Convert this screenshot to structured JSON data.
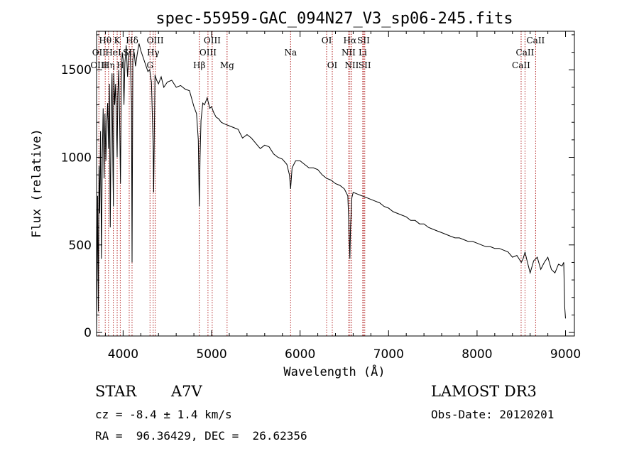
{
  "chart_data": {
    "type": "line",
    "title": "spec-55959-GAC_094N27_V3_sp06-245.fits",
    "xlabel": "Wavelength (Å)",
    "ylabel": "Flux (relative)",
    "xlim": [
      3700,
      9100
    ],
    "ylim": [
      -20,
      1720
    ],
    "xticks": [
      4000,
      5000,
      6000,
      7000,
      8000,
      9000
    ],
    "yticks": [
      0,
      500,
      1000,
      1500
    ],
    "series": [
      {
        "name": "spectrum",
        "x": [
          3700,
          3705,
          3712,
          3720,
          3728,
          3735,
          3745,
          3755,
          3765,
          3775,
          3785,
          3795,
          3805,
          3815,
          3825,
          3835,
          3845,
          3855,
          3865,
          3875,
          3885,
          3890,
          3895,
          3905,
          3915,
          3925,
          3933,
          3940,
          3950,
          3960,
          3970,
          3980,
          3990,
          4000,
          4010,
          4020,
          4035,
          4050,
          4065,
          4080,
          4095,
          4101,
          4110,
          4125,
          4140,
          4160,
          4180,
          4200,
          4220,
          4240,
          4260,
          4280,
          4300,
          4320,
          4340,
          4345,
          4360,
          4380,
          4400,
          4430,
          4460,
          4500,
          4550,
          4600,
          4650,
          4700,
          4750,
          4800,
          4830,
          4850,
          4861,
          4870,
          4880,
          4900,
          4920,
          4950,
          4980,
          5000,
          5020,
          5050,
          5080,
          5110,
          5150,
          5200,
          5250,
          5300,
          5350,
          5400,
          5450,
          5500,
          5550,
          5600,
          5650,
          5700,
          5750,
          5800,
          5850,
          5880,
          5893,
          5910,
          5950,
          6000,
          6050,
          6100,
          6150,
          6200,
          6250,
          6300,
          6350,
          6400,
          6450,
          6500,
          6540,
          6555,
          6563,
          6570,
          6585,
          6600,
          6650,
          6700,
          6750,
          6800,
          6850,
          6900,
          6950,
          7000,
          7050,
          7100,
          7150,
          7200,
          7250,
          7300,
          7350,
          7400,
          7450,
          7500,
          7550,
          7600,
          7650,
          7700,
          7750,
          7800,
          7850,
          7900,
          7950,
          8000,
          8050,
          8100,
          8150,
          8200,
          8250,
          8300,
          8350,
          8400,
          8450,
          8500,
          8520,
          8542,
          8560,
          8600,
          8640,
          8662,
          8680,
          8720,
          8760,
          8800,
          8840,
          8880,
          8920,
          8960,
          8980,
          8990,
          9000
        ],
        "values": [
          20,
          310,
          780,
          120,
          950,
          680,
          1150,
          420,
          1020,
          1280,
          880,
          1250,
          980,
          1190,
          1310,
          1050,
          1420,
          600,
          1260,
          1480,
          920,
          720,
          1480,
          1300,
          1420,
          1210,
          1000,
          1350,
          1500,
          1240,
          850,
          1450,
          1600,
          1560,
          1300,
          1540,
          1640,
          1460,
          1590,
          1610,
          1300,
          400,
          1560,
          1600,
          1520,
          1590,
          1650,
          1610,
          1580,
          1550,
          1520,
          1490,
          1500,
          1430,
          1050,
          800,
          1470,
          1440,
          1420,
          1460,
          1400,
          1430,
          1440,
          1400,
          1410,
          1390,
          1380,
          1290,
          1250,
          1100,
          720,
          1000,
          1210,
          1310,
          1300,
          1340,
          1280,
          1290,
          1260,
          1230,
          1220,
          1200,
          1190,
          1180,
          1170,
          1160,
          1110,
          1130,
          1110,
          1080,
          1050,
          1070,
          1060,
          1020,
          1000,
          990,
          960,
          900,
          820,
          940,
          980,
          980,
          960,
          940,
          940,
          930,
          900,
          880,
          870,
          850,
          840,
          820,
          780,
          560,
          420,
          600,
          770,
          800,
          790,
          780,
          770,
          760,
          750,
          740,
          720,
          710,
          690,
          680,
          670,
          660,
          640,
          640,
          620,
          620,
          600,
          590,
          580,
          570,
          560,
          550,
          540,
          540,
          530,
          520,
          520,
          510,
          500,
          490,
          490,
          480,
          480,
          470,
          460,
          430,
          440,
          400,
          420,
          460,
          420,
          340,
          410,
          420,
          430,
          360,
          400,
          430,
          360,
          340,
          390,
          380,
          400,
          150,
          80
        ]
      }
    ],
    "spectral_lines": [
      {
        "label": "Hθ",
        "x": 3798,
        "row": 1
      },
      {
        "label": "OII",
        "x": 3727,
        "row": 2
      },
      {
        "label": "OIII",
        "x": 3727,
        "row": 3
      },
      {
        "label": "K",
        "x": 3933,
        "row": 1
      },
      {
        "label": "HeI",
        "x": 3889,
        "row": 2
      },
      {
        "label": "Hη",
        "x": 3835,
        "row": 3
      },
      {
        "label": "Hδ",
        "x": 4101,
        "row": 1
      },
      {
        "label": "SII",
        "x": 4069,
        "row": 2
      },
      {
        "label": "H",
        "x": 3968,
        "row": 3
      },
      {
        "label": "OIII",
        "x": 4363,
        "row": 1
      },
      {
        "label": "Hγ",
        "x": 4340,
        "row": 2
      },
      {
        "label": "G",
        "x": 4304,
        "row": 3
      },
      {
        "label": "OIII",
        "x": 5007,
        "row": 1
      },
      {
        "label": "OIII",
        "x": 4959,
        "row": 2
      },
      {
        "label": "Hβ",
        "x": 4861,
        "row": 3
      },
      {
        "label": "Mg",
        "x": 5175,
        "row": 3
      },
      {
        "label": "Na",
        "x": 5893,
        "row": 2
      },
      {
        "label": "OI",
        "x": 6300,
        "row": 1
      },
      {
        "label": "OI",
        "x": 6364,
        "row": 3
      },
      {
        "label": "Hα",
        "x": 6563,
        "row": 1
      },
      {
        "label": "NII",
        "x": 6548,
        "row": 2
      },
      {
        "label": "NII",
        "x": 6584,
        "row": 3
      },
      {
        "label": "SII",
        "x": 6717,
        "row": 1
      },
      {
        "label": "Li",
        "x": 6708,
        "row": 2
      },
      {
        "label": "SII",
        "x": 6731,
        "row": 3
      },
      {
        "label": "CaII",
        "x": 8662,
        "row": 1
      },
      {
        "label": "CaII",
        "x": 8542,
        "row": 2
      },
      {
        "label": "CaII",
        "x": 8498,
        "row": 3
      }
    ]
  },
  "info": {
    "object_class": "STAR",
    "subclass": "A7V",
    "redshift_line": "cz = -8.4 ± 1.4 km/s",
    "coords_line": "RA =  96.36429, DEC =  26.62356",
    "survey": "LAMOST DR3",
    "obs_date_line": "Obs-Date: 20120201"
  },
  "colors": {
    "axis": "#000000",
    "spectrum": "#000000",
    "line_marker": "#b22222"
  }
}
